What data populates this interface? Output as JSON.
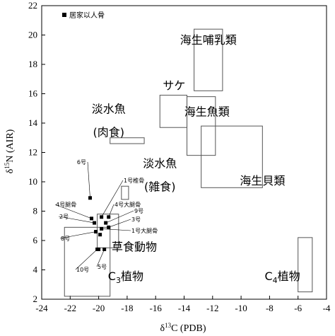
{
  "chart_data": {
    "type": "scatter",
    "xlabel": "δ13C (PDB)",
    "ylabel": "δ15N (AIR)",
    "xlim": [
      -24,
      -4
    ],
    "ylim": [
      2,
      22
    ],
    "xticks": [
      -24,
      -22,
      -20,
      -18,
      -16,
      -14,
      -12,
      -10,
      -8,
      -6,
      -4
    ],
    "yticks": [
      2,
      4,
      6,
      8,
      10,
      12,
      14,
      16,
      18,
      20,
      22
    ],
    "legend": {
      "marker": "square",
      "label": "居家以人骨",
      "position": "top-left"
    },
    "series": [
      {
        "name": "居家以人骨",
        "points": [
          {
            "label": "6号",
            "x": -20.6,
            "y": 8.9
          },
          {
            "label": "1号椎骨",
            "x": -19.8,
            "y": 7.6
          },
          {
            "label": "4号腿骨",
            "x": -20.5,
            "y": 7.5
          },
          {
            "label": "4号大腿骨",
            "x": -19.3,
            "y": 7.6
          },
          {
            "label": "2号",
            "x": -20.3,
            "y": 7.2
          },
          {
            "label": "9号",
            "x": -19.5,
            "y": 7.2
          },
          {
            "label": "3号",
            "x": -19.3,
            "y": 6.9
          },
          {
            "label": "1号大腿骨",
            "x": -19.8,
            "y": 6.8
          },
          {
            "label": "8号",
            "x": -20.2,
            "y": 6.6
          },
          {
            "label": "",
            "x": -19.9,
            "y": 6.4
          },
          {
            "label": "10号",
            "x": -20.1,
            "y": 5.4
          },
          {
            "label": "5号",
            "x": -19.6,
            "y": 5.4
          },
          {
            "label": "",
            "x": -20.0,
            "y": 5.4
          }
        ]
      }
    ],
    "regions": [
      {
        "label": "海生哺乳類",
        "x": [
          -13.3,
          -11.3
        ],
        "y": [
          16.2,
          20.4
        ]
      },
      {
        "label": "サケ",
        "x": [
          -15.7,
          -13.8
        ],
        "y": [
          13.7,
          15.9
        ]
      },
      {
        "label": "海生魚類",
        "x": [
          -13.8,
          -11.8
        ],
        "y": [
          11.8,
          15.8
        ]
      },
      {
        "label": "海生貝類",
        "x": [
          -12.8,
          -8.5
        ],
        "y": [
          9.6,
          13.8
        ]
      },
      {
        "label": "淡水魚(肉食)",
        "x": [
          -19.2,
          -16.8
        ],
        "y": [
          12.6,
          13.0
        ]
      },
      {
        "label": "淡水魚(雑食)",
        "x": [
          -18.4,
          -17.9
        ],
        "y": [
          8.8,
          9.7
        ]
      },
      {
        "label": "草食動物",
        "x": [
          -20.1,
          -18.6
        ],
        "y": [
          5.5,
          7.8
        ]
      },
      {
        "label": "C3植物",
        "x": [
          -22.4,
          -19.2
        ],
        "y": [
          2.2,
          6.9
        ]
      },
      {
        "label": "C4植物",
        "x": [
          -6.0,
          -5.0
        ],
        "y": [
          2.5,
          6.2
        ]
      }
    ],
    "region_texts": [
      {
        "key": "seal",
        "text": "海生哺乳類",
        "x": -12.3,
        "y": 19.4
      },
      {
        "key": "salmon",
        "text": "サケ",
        "x": -14.7,
        "y": 16.3
      },
      {
        "key": "fish",
        "text": "海生魚類",
        "x": -12.4,
        "y": 14.5
      },
      {
        "key": "shell",
        "text": "海生貝類",
        "x": -8.5,
        "y": 9.8
      },
      {
        "key": "fw_carn_1",
        "text": "淡水魚",
        "x": -19.3,
        "y": 14.7
      },
      {
        "key": "fw_carn_2",
        "text": "(肉食)",
        "x": -19.3,
        "y": 13.1
      },
      {
        "key": "fw_omni_1",
        "text": "淡水魚",
        "x": -15.7,
        "y": 11.0
      },
      {
        "key": "fw_omni_2",
        "text": "(雑食)",
        "x": -15.7,
        "y": 9.4
      },
      {
        "key": "herb",
        "text": "草食動物",
        "x": -17.5,
        "y": 5.3
      },
      {
        "key": "c3_main",
        "text": "C",
        "sub": "3",
        "rest": "植物",
        "x": -18.1,
        "y": 3.3
      },
      {
        "key": "c4_main",
        "text": "C",
        "sub": "4",
        "rest": "植物",
        "x": -7.1,
        "y": 3.3
      }
    ]
  }
}
